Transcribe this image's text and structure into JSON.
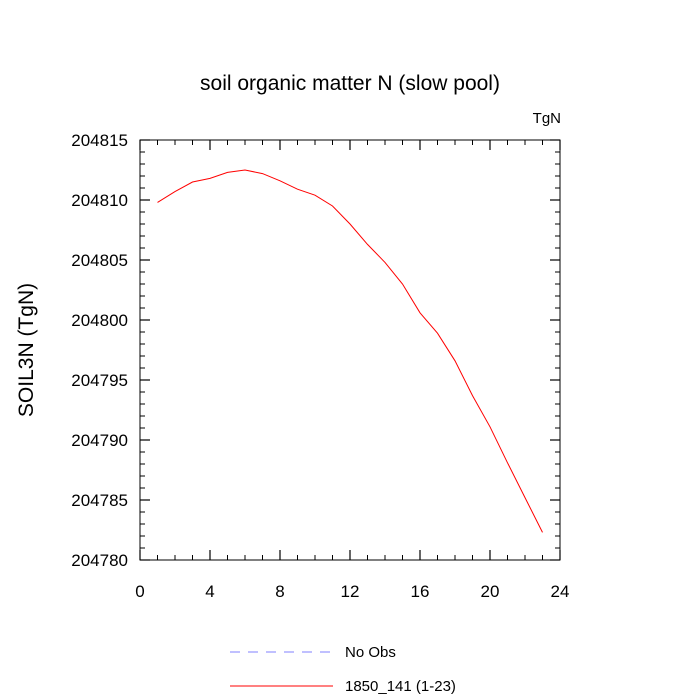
{
  "chart_data": {
    "type": "line",
    "title": "soil organic matter N (slow pool)",
    "units_label": "TgN",
    "xlabel": "",
    "ylabel": "SOIL3N  (TgN)",
    "xlim": [
      0,
      24
    ],
    "ylim": [
      204780,
      204815
    ],
    "x_ticks": [
      0,
      4,
      8,
      12,
      16,
      20,
      24
    ],
    "y_ticks": [
      204780,
      204785,
      204790,
      204795,
      204800,
      204805,
      204810,
      204815
    ],
    "grid": false,
    "legend_position": "bottom-center",
    "legend": [
      {
        "label": "No Obs",
        "color": "#8080ff",
        "style": "dashed"
      },
      {
        "label": "1850_141 (1-23)",
        "color": "#ff0000",
        "style": "solid"
      }
    ],
    "series": [
      {
        "name": "1850_141 (1-23)",
        "color": "#ff0000",
        "x": [
          1,
          2,
          3,
          4,
          5,
          6,
          7,
          8,
          9,
          10,
          11,
          12,
          13,
          14,
          15,
          16,
          17,
          18,
          19,
          20,
          21,
          22,
          23
        ],
        "values": [
          204809.8,
          204810.7,
          204811.5,
          204811.8,
          204812.3,
          204812.5,
          204812.2,
          204811.6,
          204810.9,
          204810.4,
          204809.5,
          204808.0,
          204806.3,
          204804.8,
          204803.0,
          204800.6,
          204798.9,
          204796.6,
          204793.7,
          204791.1,
          204788.1,
          204785.2,
          204782.3
        ]
      }
    ]
  }
}
